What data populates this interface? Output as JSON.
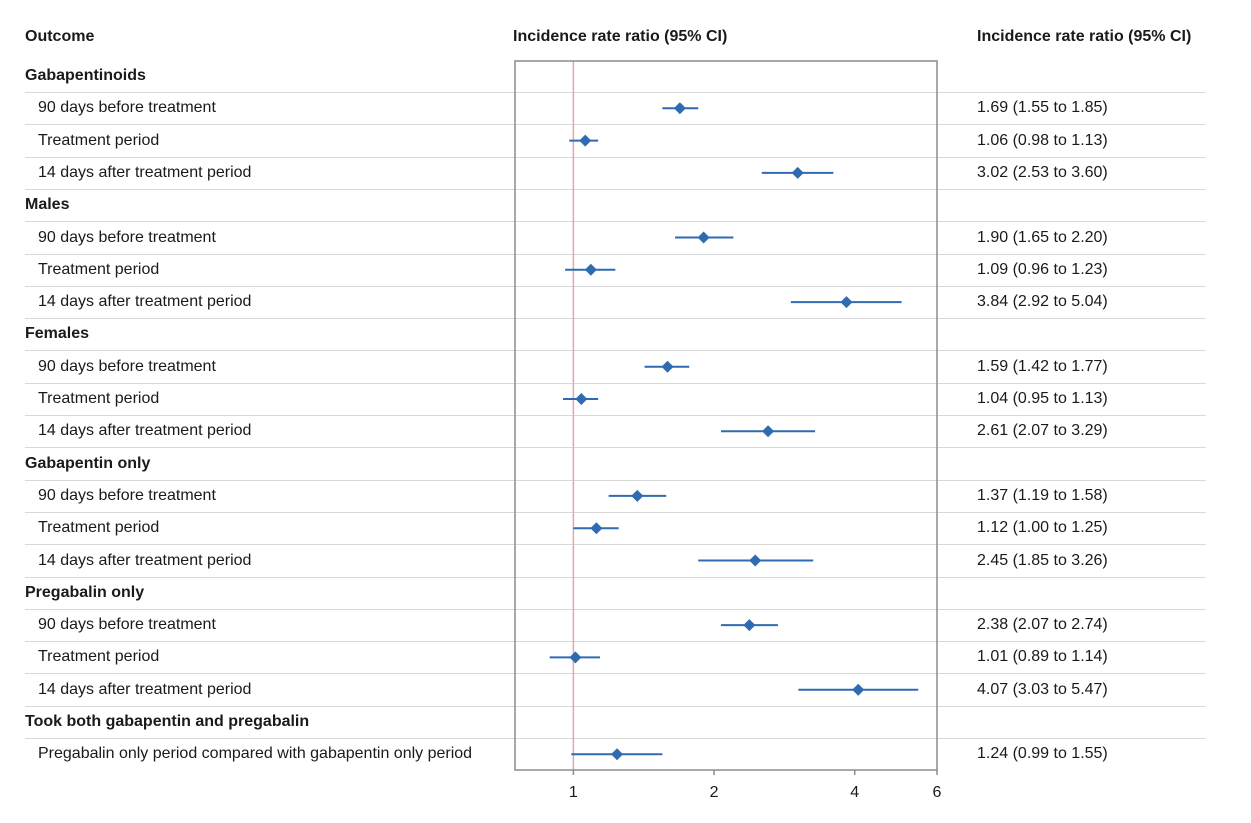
{
  "headers": {
    "outcome": "Outcome",
    "plot": "Incidence rate ratio (95% CI)",
    "ci": "Incidence rate ratio (95% CI)"
  },
  "colors": {
    "marker": "#2e6bb0",
    "reference_line": "#e7a5ac",
    "frame": "#8c8c8c",
    "rule": "#d9d9d9"
  },
  "chart_data": {
    "type": "forest",
    "x_scale": "log",
    "xlim": [
      0.75,
      6
    ],
    "reference_value": 1,
    "ticks": [
      1,
      2,
      4,
      6
    ],
    "tick_labels": [
      "1",
      "2",
      "4",
      "6"
    ],
    "rows": [
      {
        "kind": "group",
        "label": "Gabapentinoids"
      },
      {
        "kind": "item",
        "label": "90 days before treatment",
        "est": 1.69,
        "lo": 1.55,
        "hi": 1.85,
        "ci_text": "1.69 (1.55 to 1.85)"
      },
      {
        "kind": "item",
        "label": "Treatment period",
        "est": 1.06,
        "lo": 0.98,
        "hi": 1.13,
        "ci_text": "1.06 (0.98 to 1.13)"
      },
      {
        "kind": "item",
        "label": "14 days after treatment period",
        "est": 3.02,
        "lo": 2.53,
        "hi": 3.6,
        "ci_text": "3.02 (2.53 to 3.60)"
      },
      {
        "kind": "group",
        "label": "Males"
      },
      {
        "kind": "item",
        "label": "90 days before treatment",
        "est": 1.9,
        "lo": 1.65,
        "hi": 2.2,
        "ci_text": "1.90 (1.65 to 2.20)"
      },
      {
        "kind": "item",
        "label": "Treatment period",
        "est": 1.09,
        "lo": 0.96,
        "hi": 1.23,
        "ci_text": "1.09 (0.96 to 1.23)"
      },
      {
        "kind": "item",
        "label": "14 days after treatment period",
        "est": 3.84,
        "lo": 2.92,
        "hi": 5.04,
        "ci_text": "3.84 (2.92 to 5.04)"
      },
      {
        "kind": "group",
        "label": "Females"
      },
      {
        "kind": "item",
        "label": "90 days before treatment",
        "est": 1.59,
        "lo": 1.42,
        "hi": 1.77,
        "ci_text": "1.59 (1.42 to 1.77)"
      },
      {
        "kind": "item",
        "label": "Treatment period",
        "est": 1.04,
        "lo": 0.95,
        "hi": 1.13,
        "ci_text": "1.04 (0.95 to 1.13)"
      },
      {
        "kind": "item",
        "label": "14 days after treatment period",
        "est": 2.61,
        "lo": 2.07,
        "hi": 3.29,
        "ci_text": "2.61 (2.07 to 3.29)"
      },
      {
        "kind": "group",
        "label": "Gabapentin only"
      },
      {
        "kind": "item",
        "label": "90 days before treatment",
        "est": 1.37,
        "lo": 1.19,
        "hi": 1.58,
        "ci_text": "1.37 (1.19 to 1.58)"
      },
      {
        "kind": "item",
        "label": "Treatment period",
        "est": 1.12,
        "lo": 1.0,
        "hi": 1.25,
        "ci_text": "1.12 (1.00 to 1.25)"
      },
      {
        "kind": "item",
        "label": "14 days after treatment period",
        "est": 2.45,
        "lo": 1.85,
        "hi": 3.26,
        "ci_text": "2.45 (1.85 to 3.26)"
      },
      {
        "kind": "group",
        "label": "Pregabalin only"
      },
      {
        "kind": "item",
        "label": "90 days before treatment",
        "est": 2.38,
        "lo": 2.07,
        "hi": 2.74,
        "ci_text": "2.38 (2.07 to 2.74)"
      },
      {
        "kind": "item",
        "label": "Treatment period",
        "est": 1.01,
        "lo": 0.89,
        "hi": 1.14,
        "ci_text": "1.01 (0.89 to 1.14)"
      },
      {
        "kind": "item",
        "label": "14 days after treatment period",
        "est": 4.07,
        "lo": 3.03,
        "hi": 5.47,
        "ci_text": "4.07 (3.03 to 5.47)"
      },
      {
        "kind": "group",
        "label": "Took both gabapentin and pregabalin"
      },
      {
        "kind": "item",
        "label": "Pregabalin only period compared with gabapentin only period",
        "est": 1.24,
        "lo": 0.99,
        "hi": 1.55,
        "ci_text": "1.24 (0.99 to 1.55)"
      }
    ]
  }
}
